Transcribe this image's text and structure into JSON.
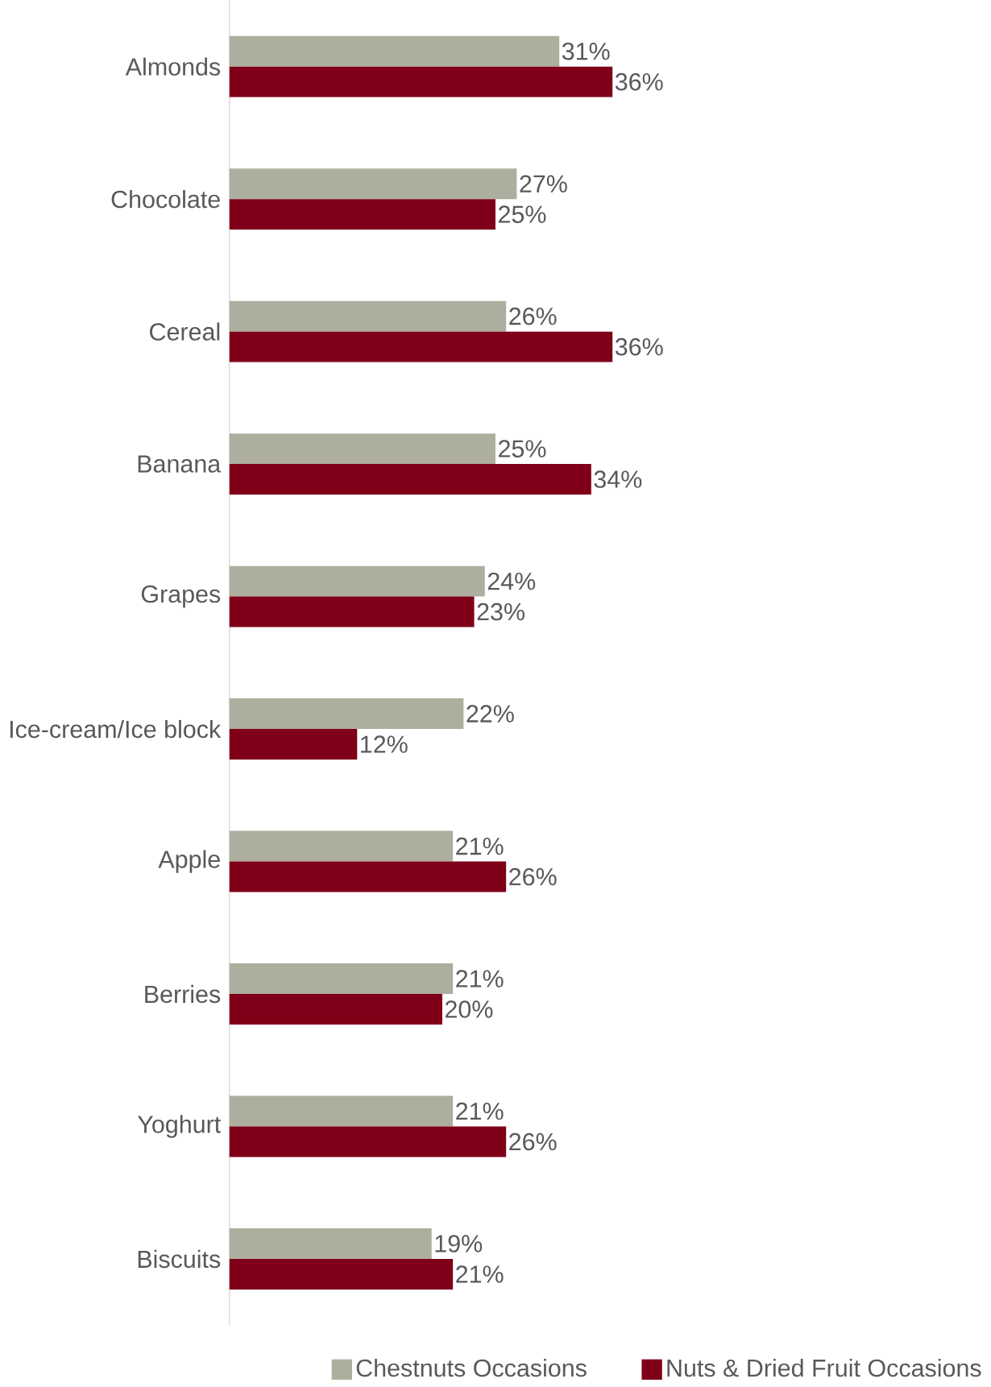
{
  "chart_data": {
    "type": "bar",
    "orientation": "horizontal",
    "categories": [
      "Almonds",
      "Chocolate",
      "Cereal",
      "Banana",
      "Grapes",
      "Ice-cream/Ice block",
      "Apple",
      "Berries",
      "Yoghurt",
      "Biscuits"
    ],
    "series": [
      {
        "name": "Chestnuts Occasions",
        "color": "#aeae9e",
        "values": [
          31,
          27,
          26,
          25,
          24,
          22,
          21,
          21,
          21,
          19
        ],
        "value_labels": [
          "31%",
          "27%",
          "26%",
          "25%",
          "24%",
          "22%",
          "21%",
          "21%",
          "21%",
          "19%"
        ]
      },
      {
        "name": "Nuts & Dried Fruit Occasions",
        "color": "#7f0018",
        "values": [
          36,
          25,
          36,
          34,
          23,
          12,
          26,
          20,
          26,
          21
        ],
        "value_labels": [
          "36%",
          "25%",
          "36%",
          "34%",
          "23%",
          "12%",
          "26%",
          "20%",
          "26%",
          "21%"
        ]
      }
    ],
    "legend": "bottom"
  }
}
